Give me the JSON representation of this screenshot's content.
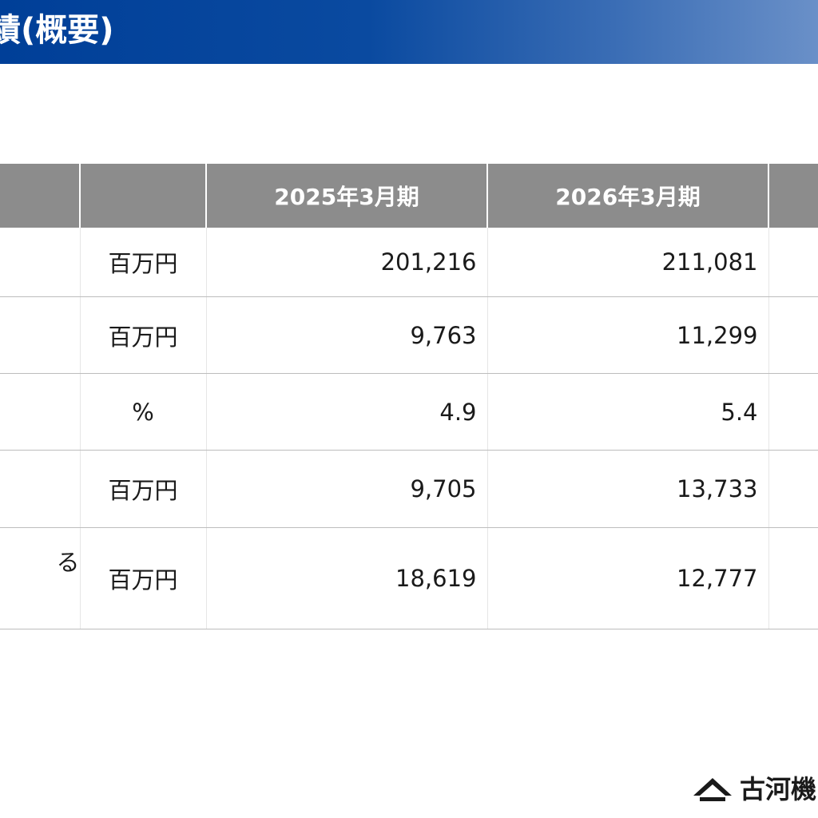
{
  "slide": {
    "title": "績(概要)"
  },
  "table": {
    "headers": [
      "",
      "",
      "2025年3月期",
      "2026年3月期",
      ""
    ],
    "rows": [
      {
        "item": "",
        "unit": "百万円",
        "fy2025": "201,216",
        "fy2026": "211,081"
      },
      {
        "item": "",
        "unit": "百万円",
        "fy2025": "9,763",
        "fy2026": "11,299"
      },
      {
        "item": "",
        "unit": "%",
        "fy2025": "4.9",
        "fy2026": "5.4"
      },
      {
        "item": "",
        "unit": "百万円",
        "fy2025": "9,705",
        "fy2026": "13,733"
      },
      {
        "item": "る",
        "unit": "百万円",
        "fy2025": "18,619",
        "fy2026": "12,777"
      }
    ]
  },
  "footer": {
    "logo_icon": "company-logo-mark",
    "logo_text": "古河機"
  }
}
